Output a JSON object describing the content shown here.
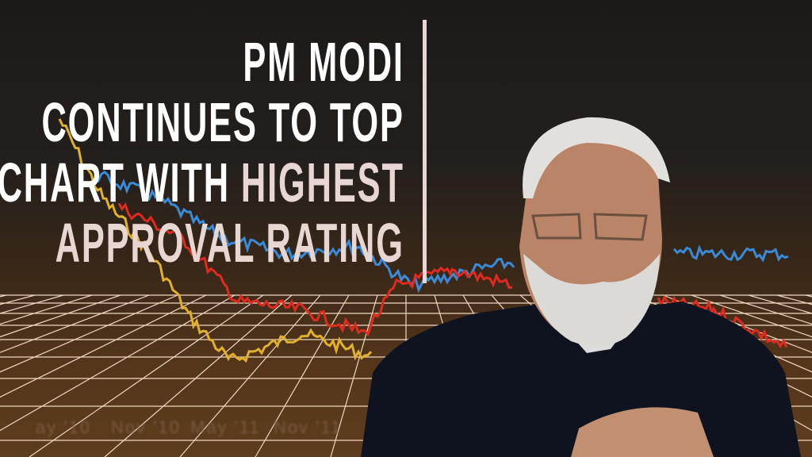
{
  "headline": {
    "line1": "PM MODI",
    "line2": "CONTINUES TO TOP",
    "line3_plain": "CHART WITH",
    "line3_accent": "HIGHEST",
    "line4_accent": "APPROVAL RATING"
  },
  "background_chart": {
    "axis_labels": [
      "ay '10",
      "Nov '10",
      "May '11",
      "Nov '11"
    ],
    "series_colors": {
      "yellow": "#e0b030",
      "blue": "#3a8ad8",
      "red": "#e02a20"
    }
  },
  "colors": {
    "accent": "#e8d6d2",
    "text": "#ffffff",
    "grid": "#f0d8c0"
  }
}
